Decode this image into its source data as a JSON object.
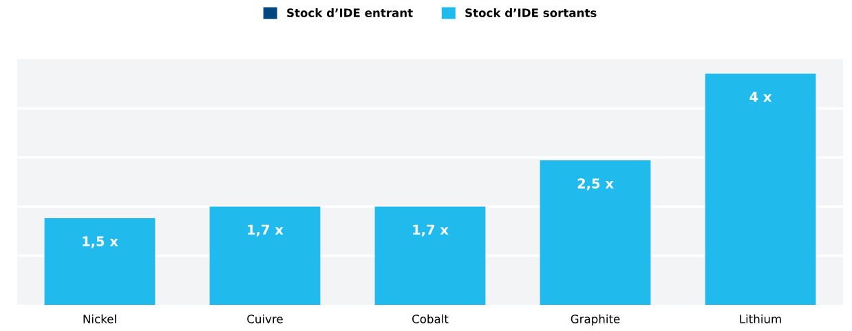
{
  "chart_data": {
    "type": "bar",
    "categories": [
      "Nickel",
      "Cuivre",
      "Cobalt",
      "Graphite",
      "Lithium"
    ],
    "series": [
      {
        "name": "Stock d’IDE entrant",
        "color": "#00467f",
        "values": [
          null,
          null,
          null,
          null,
          null
        ]
      },
      {
        "name": "Stock d’IDE sortants",
        "color": "#20bbec",
        "values": [
          1.5,
          1.7,
          1.7,
          2.5,
          4
        ],
        "value_labels": [
          "1,5 x",
          "1,7 x",
          "1,7 x",
          "2,5 x",
          "4 x"
        ]
      }
    ],
    "ylim": [
      0,
      4.25
    ],
    "yticks": [
      {
        "value": 0.85,
        "label": null
      },
      {
        "value": 1.7,
        "label": null
      },
      {
        "value": 2.55,
        "label": null
      },
      {
        "value": 3.4,
        "label": null
      }
    ],
    "tick_labels": "x",
    "grid": "y",
    "legend": "top"
  }
}
